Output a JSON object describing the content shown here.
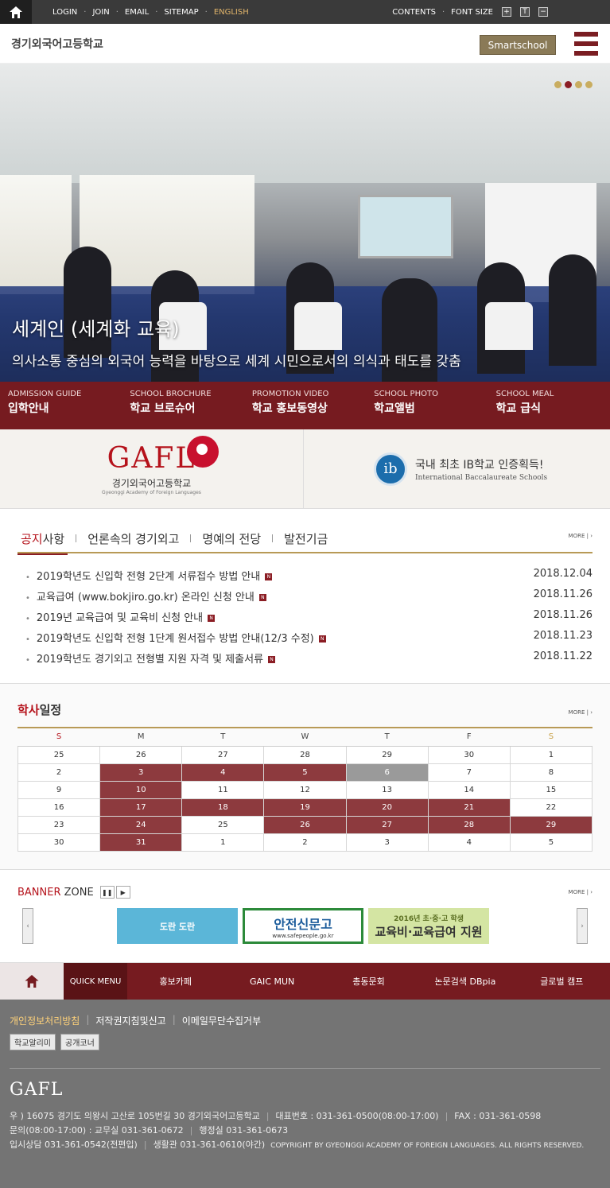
{
  "topbar": {
    "links": [
      "LOGIN",
      "JOIN",
      "EMAIL",
      "SITEMAP",
      "ENGLISH"
    ],
    "contents": "CONTENTS",
    "font_size": "FONT SIZE",
    "font_plus": "+",
    "font_reset": "T",
    "font_minus": "−"
  },
  "header": {
    "school_name": "경기외국어고등학교",
    "smartschool": "Smartschool"
  },
  "hero": {
    "title": "세계인 (세계화 교육)",
    "subtitle": "의사소통 중심의 외국어 능력을 바탕으로 세계 시민으로서의 의식과 태도를 갖춤"
  },
  "quick_links": [
    {
      "en": "ADMISSION GUIDE",
      "ko": "입학안내"
    },
    {
      "en": "SCHOOL BROCHURE",
      "ko": "학교 브로슈어"
    },
    {
      "en": "PROMOTION VIDEO",
      "ko": "학교 홍보동영상"
    },
    {
      "en": "SCHOOL PHOTO",
      "ko": "학교앨범"
    },
    {
      "en": "SCHOOL MEAL",
      "ko": "학교 급식"
    }
  ],
  "logos": {
    "gafl": "GAFL",
    "gafl_name": "경기외국어고등학교",
    "gafl_en": "Gyeonggi Academy of Foreign Languages",
    "ib_mark": "ib",
    "ib_main": "국내 최초 IB학교 인증획득!",
    "ib_sub": "International Baccalaureate Schools"
  },
  "notice": {
    "tabs": [
      {
        "hl": "공지",
        "rest": "사항"
      },
      {
        "hl": "",
        "rest": "언론속의 경기외고"
      },
      {
        "hl": "",
        "rest": "명예의 전당"
      },
      {
        "hl": "",
        "rest": "발전기금"
      }
    ],
    "more": "MORE | ›",
    "items": [
      {
        "title": "2019학년도 신입학 전형 2단계 서류접수 방법 안내",
        "date": "2018.12.04"
      },
      {
        "title": "교육급여 (www.bokjiro.go.kr) 온라인 신청 안내",
        "date": "2018.11.26"
      },
      {
        "title": "2019년 교육급여 및 교육비 신청 안내",
        "date": "2018.11.26"
      },
      {
        "title": "2019학년도 신입학 전형 1단계 원서접수 방법 안내(12/3 수정)",
        "date": "2018.11.23"
      },
      {
        "title": "2019학년도 경기외고 전형별 지원 자격 및 제출서류",
        "date": "2018.11.22"
      }
    ],
    "badge": "N"
  },
  "calendar": {
    "title_hl": "학사",
    "title_rest": "일정",
    "more": "MORE | ›",
    "weekdays": [
      "S",
      "M",
      "T",
      "W",
      "T",
      "F",
      "S"
    ],
    "weeks": [
      [
        "25",
        "26",
        "27",
        "28",
        "29",
        "30",
        "1"
      ],
      [
        "2",
        "3",
        "4",
        "5",
        "6",
        "7",
        "8"
      ],
      [
        "9",
        "10",
        "11",
        "12",
        "13",
        "14",
        "15"
      ],
      [
        "16",
        "17",
        "18",
        "19",
        "20",
        "21",
        "22"
      ],
      [
        "23",
        "24",
        "25",
        "26",
        "27",
        "28",
        "29"
      ],
      [
        "30",
        "31",
        "1",
        "2",
        "3",
        "4",
        "5"
      ]
    ],
    "events": [
      "1-1",
      "1-2",
      "1-3",
      "2-1",
      "3-1",
      "3-2",
      "3-3",
      "3-4",
      "3-5",
      "4-1",
      "4-3",
      "4-4",
      "4-5",
      "4-6",
      "5-1"
    ],
    "today": "1-4"
  },
  "banner": {
    "title_hl": "BANNER",
    "title_rest": " ZONE",
    "more": "MORE | ›",
    "pause": "❚❚",
    "play": "▶",
    "prev": "‹",
    "next": "›",
    "items": [
      {
        "text": "도란 도란"
      },
      {
        "text": "안전신문고",
        "sub": "www.safepeople.go.kr"
      },
      {
        "text": "교육비·교육급여 지원",
        "sub": "2016년 초·중·고 학생"
      }
    ]
  },
  "footnav": {
    "quick_menu": "QUICK MENU",
    "items": [
      "홍보카페",
      "GAIC MUN",
      "총동문회",
      "논문검색 DBpia",
      "글로벌 캠프"
    ]
  },
  "footer": {
    "policies": [
      "개인정보처리방침",
      "저작권지침및신고",
      "이메일무단수집거부"
    ],
    "buttons": [
      "학교알리미",
      "공개코너"
    ],
    "logo": "GAFL",
    "address": "우 ) 16075 경기도 의왕시 고산로 105번길 30 경기외국어고등학교",
    "rep": "대표번호 : 031-361-0500(08:00-17:00)",
    "fax": "FAX : 031-361-0598",
    "inquiry": "문의(08:00-17:00) : 교무실 031-361-0672",
    "admin": "행정실 031-361-0673",
    "admission": "입시상담 031-361-0542(전편입)",
    "dorm": "생활관 031-361-0610(야간)",
    "copyright": "COPYRIGHT BY GYEONGGI ACADEMY OF FOREIGN LANGUAGES. ALL RIGHTS RESERVED."
  },
  "colors": {
    "brand": "#761b20",
    "accent_gold": "#b89a56",
    "logo_red": "#b5121b"
  }
}
